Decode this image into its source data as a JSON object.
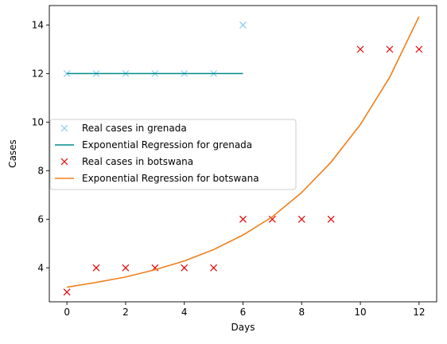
{
  "chart_data": {
    "type": "line",
    "title": "",
    "xlabel": "Days",
    "ylabel": "Cases",
    "xlim": [
      -0.6,
      12.6
    ],
    "ylim": [
      2.6,
      14.8
    ],
    "xticks": [
      0,
      2,
      4,
      6,
      8,
      10,
      12
    ],
    "yticks": [
      4,
      6,
      8,
      10,
      12,
      14
    ],
    "grid": false,
    "legend_position": "center-left",
    "series": [
      {
        "name": "Real cases in grenada",
        "kind": "scatter",
        "marker": "x",
        "color": "#87ceeb",
        "x": [
          0,
          1,
          2,
          3,
          4,
          5,
          6
        ],
        "y": [
          12,
          12,
          12,
          12,
          12,
          12,
          14
        ]
      },
      {
        "name": "Exponential Regression for grenada",
        "kind": "line",
        "color": "#008b8b",
        "x": [
          0,
          1,
          2,
          3,
          4,
          5,
          6
        ],
        "y": [
          12,
          12,
          12,
          12,
          12,
          12,
          12
        ]
      },
      {
        "name": "Real cases in botswana",
        "kind": "scatter",
        "marker": "x",
        "color": "#e00000",
        "x": [
          0,
          1,
          2,
          3,
          4,
          5,
          6,
          7,
          8,
          9,
          10,
          11,
          12
        ],
        "y": [
          3,
          4,
          4,
          4,
          4,
          4,
          6,
          6,
          6,
          6,
          13,
          13,
          13
        ]
      },
      {
        "name": "Exponential Regression for botswana",
        "kind": "line",
        "color": "#f07f1a",
        "x": [
          0,
          1,
          2,
          3,
          4,
          5,
          6,
          7,
          8,
          9,
          10,
          11,
          12
        ],
        "y": [
          3.2,
          3.4,
          3.62,
          3.92,
          4.28,
          4.75,
          5.35,
          6.1,
          7.1,
          8.35,
          9.9,
          11.85,
          14.35
        ]
      }
    ]
  }
}
